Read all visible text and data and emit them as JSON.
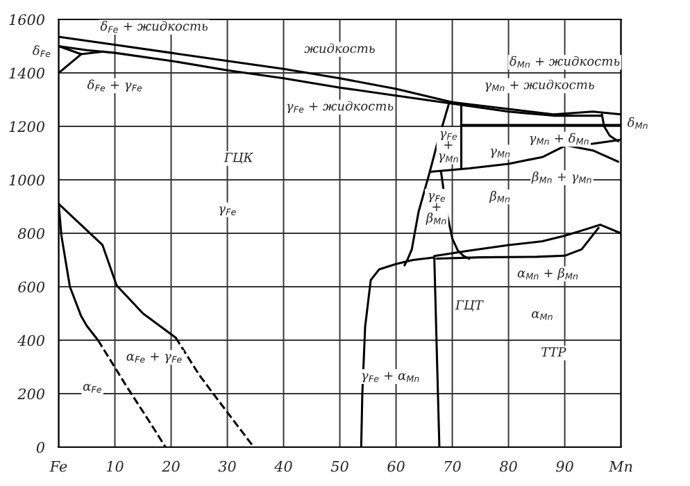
{
  "chart_data": {
    "type": "line",
    "xlim": [
      0,
      100
    ],
    "ylim": [
      0,
      1600
    ],
    "xticks": [
      {
        "value": 0,
        "label": "Fe"
      },
      10,
      20,
      30,
      40,
      50,
      60,
      70,
      80,
      90,
      {
        "value": 100,
        "label": "Mn"
      }
    ],
    "yticks": [
      0,
      200,
      400,
      600,
      800,
      1000,
      1200,
      1400,
      1600
    ],
    "grid": true,
    "legend": false,
    "marker": "none",
    "series": [
      {
        "color": "#000000",
        "line_style": "solid",
        "x": [
          0,
          5,
          10,
          20,
          30,
          40,
          50,
          60,
          70,
          80,
          88,
          95,
          100
        ],
        "values": [
          1535,
          1520,
          1505,
          1475,
          1445,
          1415,
          1380,
          1340,
          1290,
          1265,
          1245,
          1255,
          1245
        ]
      },
      {
        "color": "#000000",
        "line_style": "solid",
        "x": [
          0,
          5,
          10,
          20,
          30,
          40,
          50,
          60,
          70,
          80,
          88,
          96.6
        ],
        "values": [
          1500,
          1485,
          1475,
          1445,
          1410,
          1380,
          1345,
          1315,
          1285,
          1255,
          1240,
          1240
        ]
      },
      {
        "color": "#000000",
        "line_style": "solid",
        "x": [
          0,
          4,
          0
        ],
        "values": [
          1400,
          1470,
          1500
        ]
      },
      {
        "color": "#000000",
        "line_style": "solid",
        "x": [
          4,
          8
        ],
        "values": [
          1470,
          1480
        ]
      },
      {
        "color": "#000000",
        "line_style": "solid",
        "x": [
          69.4,
          67.5,
          66,
          64,
          62.8,
          62,
          61.5
        ],
        "values": [
          1285,
          1150,
          1030,
          880,
          740,
          700,
          680
        ]
      },
      {
        "color": "#000000",
        "line_style": "solid",
        "x": [
          71.6,
          71.6
        ],
        "values": [
          1285,
          1040
        ]
      },
      {
        "color": "#000000",
        "line_style": "solid",
        "x": [
          71.6,
          100
        ],
        "values": [
          1205,
          1205
        ]
      },
      {
        "color": "#000000",
        "line_style": "solid",
        "x": [
          66,
          73,
          80,
          86,
          90.2,
          95,
          99.5
        ],
        "values": [
          1030,
          1043,
          1060,
          1085,
          1129,
          1110,
          1068
        ]
      },
      {
        "color": "#000000",
        "line_style": "solid",
        "x": [
          90.2,
          95,
          100
        ],
        "values": [
          1129,
          1135,
          1150
        ]
      },
      {
        "color": "#000000",
        "line_style": "solid",
        "x": [
          96.6,
          97,
          98,
          99.5
        ],
        "values": [
          1245,
          1200,
          1165,
          1144
        ]
      },
      {
        "color": "#000000",
        "line_style": "solid",
        "x": [
          68,
          69,
          70,
          71,
          72,
          73
        ],
        "values": [
          1030,
          880,
          780,
          735,
          715,
          705
        ]
      },
      {
        "color": "#000000",
        "line_style": "solid",
        "x": [
          53.8,
          54,
          54.5,
          55.5,
          57,
          60,
          63,
          66.8,
          67.7
        ],
        "values": [
          0,
          200,
          450,
          625,
          665,
          685,
          700,
          710,
          0
        ]
      },
      {
        "color": "#000000",
        "line_style": "solid",
        "x": [
          66.8,
          73,
          80,
          86,
          90,
          93,
          96.3,
          100
        ],
        "values": [
          715,
          735,
          756,
          770,
          791,
          810,
          832,
          800
        ]
      },
      {
        "color": "#000000",
        "line_style": "solid",
        "x": [
          67.2,
          75,
          85,
          90,
          93,
          96
        ],
        "values": [
          705,
          710,
          712,
          716,
          740,
          820
        ]
      },
      {
        "color": "#000000",
        "line_style": "solid",
        "x": [
          0,
          0.5,
          2,
          4,
          5,
          7
        ],
        "values": [
          910,
          790,
          600,
          490,
          454,
          400
        ]
      },
      {
        "color": "#000000",
        "line_style": "dashed",
        "x": [
          7,
          12,
          16,
          19
        ],
        "values": [
          400,
          230,
          100,
          0
        ]
      },
      {
        "color": "#000000",
        "line_style": "solid",
        "x": [
          0,
          7.8,
          10.3,
          15,
          20.8
        ],
        "values": [
          910,
          756,
          605,
          500,
          410
        ]
      },
      {
        "color": "#000000",
        "line_style": "dashed",
        "x": [
          20.8,
          25,
          30,
          34.7
        ],
        "values": [
          410,
          270,
          130,
          0
        ]
      }
    ],
    "annotations": [
      "δ$_{Fe}$ + жидкость",
      "δ$_{Fe}$",
      "δ$_{Fe}$ + γ$_{Fe}$",
      "жидкость",
      "γ$_{Fe}$ + жидкость",
      "ГЦК",
      "γ$_{Fe}$",
      "δ$_{Mn}$ + жидкость",
      "γ$_{Mn}$ + жидкость",
      "δ$_{Mn}$",
      "γ$_{Fe}$\n+\nγ$_{Mn}$",
      "γ$_{Mn}$",
      "γ$_{Mn}$ + δ$_{Mn}$",
      "β$_{Mn}$ + γ$_{Mn}$",
      "γ$_{Fe}$\n+\nβ$_{Mn}$",
      "β$_{Mn}$",
      "α$_{Mn}$ + β$_{Mn}$",
      "ГЦТ",
      "α$_{Mn}$",
      "ТТР",
      "γ$_{Fe}$ + α$_{Mn}$",
      "α$_{Fe}$ + γ$_{Fe}$",
      "α$_{Fe}$"
    ]
  }
}
